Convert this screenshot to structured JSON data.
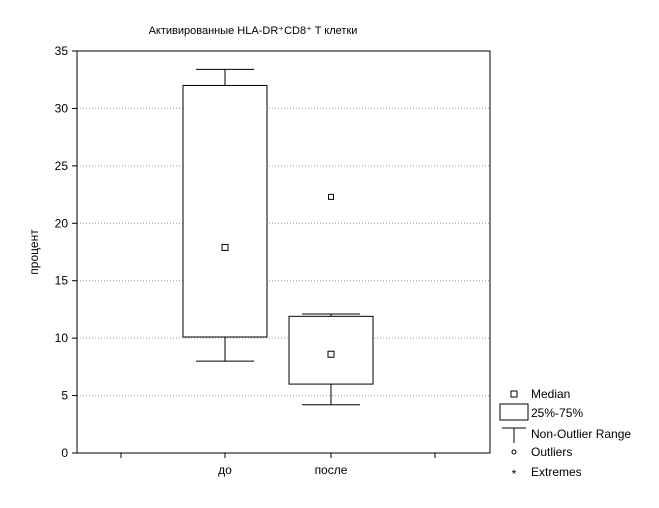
{
  "chart_data": {
    "type": "boxplot",
    "title": "Активированные HLA-DR⁺CD8⁺ T клетки",
    "xlabel": "",
    "ylabel": "процент",
    "ylim": [
      0,
      35
    ],
    "yticks": [
      0,
      5,
      10,
      15,
      20,
      25,
      30,
      35
    ],
    "grid": "horizontal dotted",
    "categories": [
      "до",
      "после"
    ],
    "boxes": [
      {
        "category": "до",
        "whisker_low": 8.0,
        "q1": 10.1,
        "median": 17.9,
        "q3": 32.0,
        "whisker_high": 33.4,
        "outliers": []
      },
      {
        "category": "после",
        "whisker_low": 4.2,
        "q1": 6.0,
        "median": 8.6,
        "q3": 11.9,
        "whisker_high": 12.1,
        "outliers": [
          22.3
        ]
      }
    ],
    "legend": {
      "placement": "bottom-right outside",
      "entries": [
        {
          "symbol": "square-marker",
          "label": "Median"
        },
        {
          "symbol": "box",
          "label": "25%-75%"
        },
        {
          "symbol": "whisker",
          "label": "Non-Outlier Range"
        },
        {
          "symbol": "circle-marker",
          "label": "Outliers"
        },
        {
          "symbol": "asterisk",
          "label": "Extremes"
        }
      ]
    }
  }
}
